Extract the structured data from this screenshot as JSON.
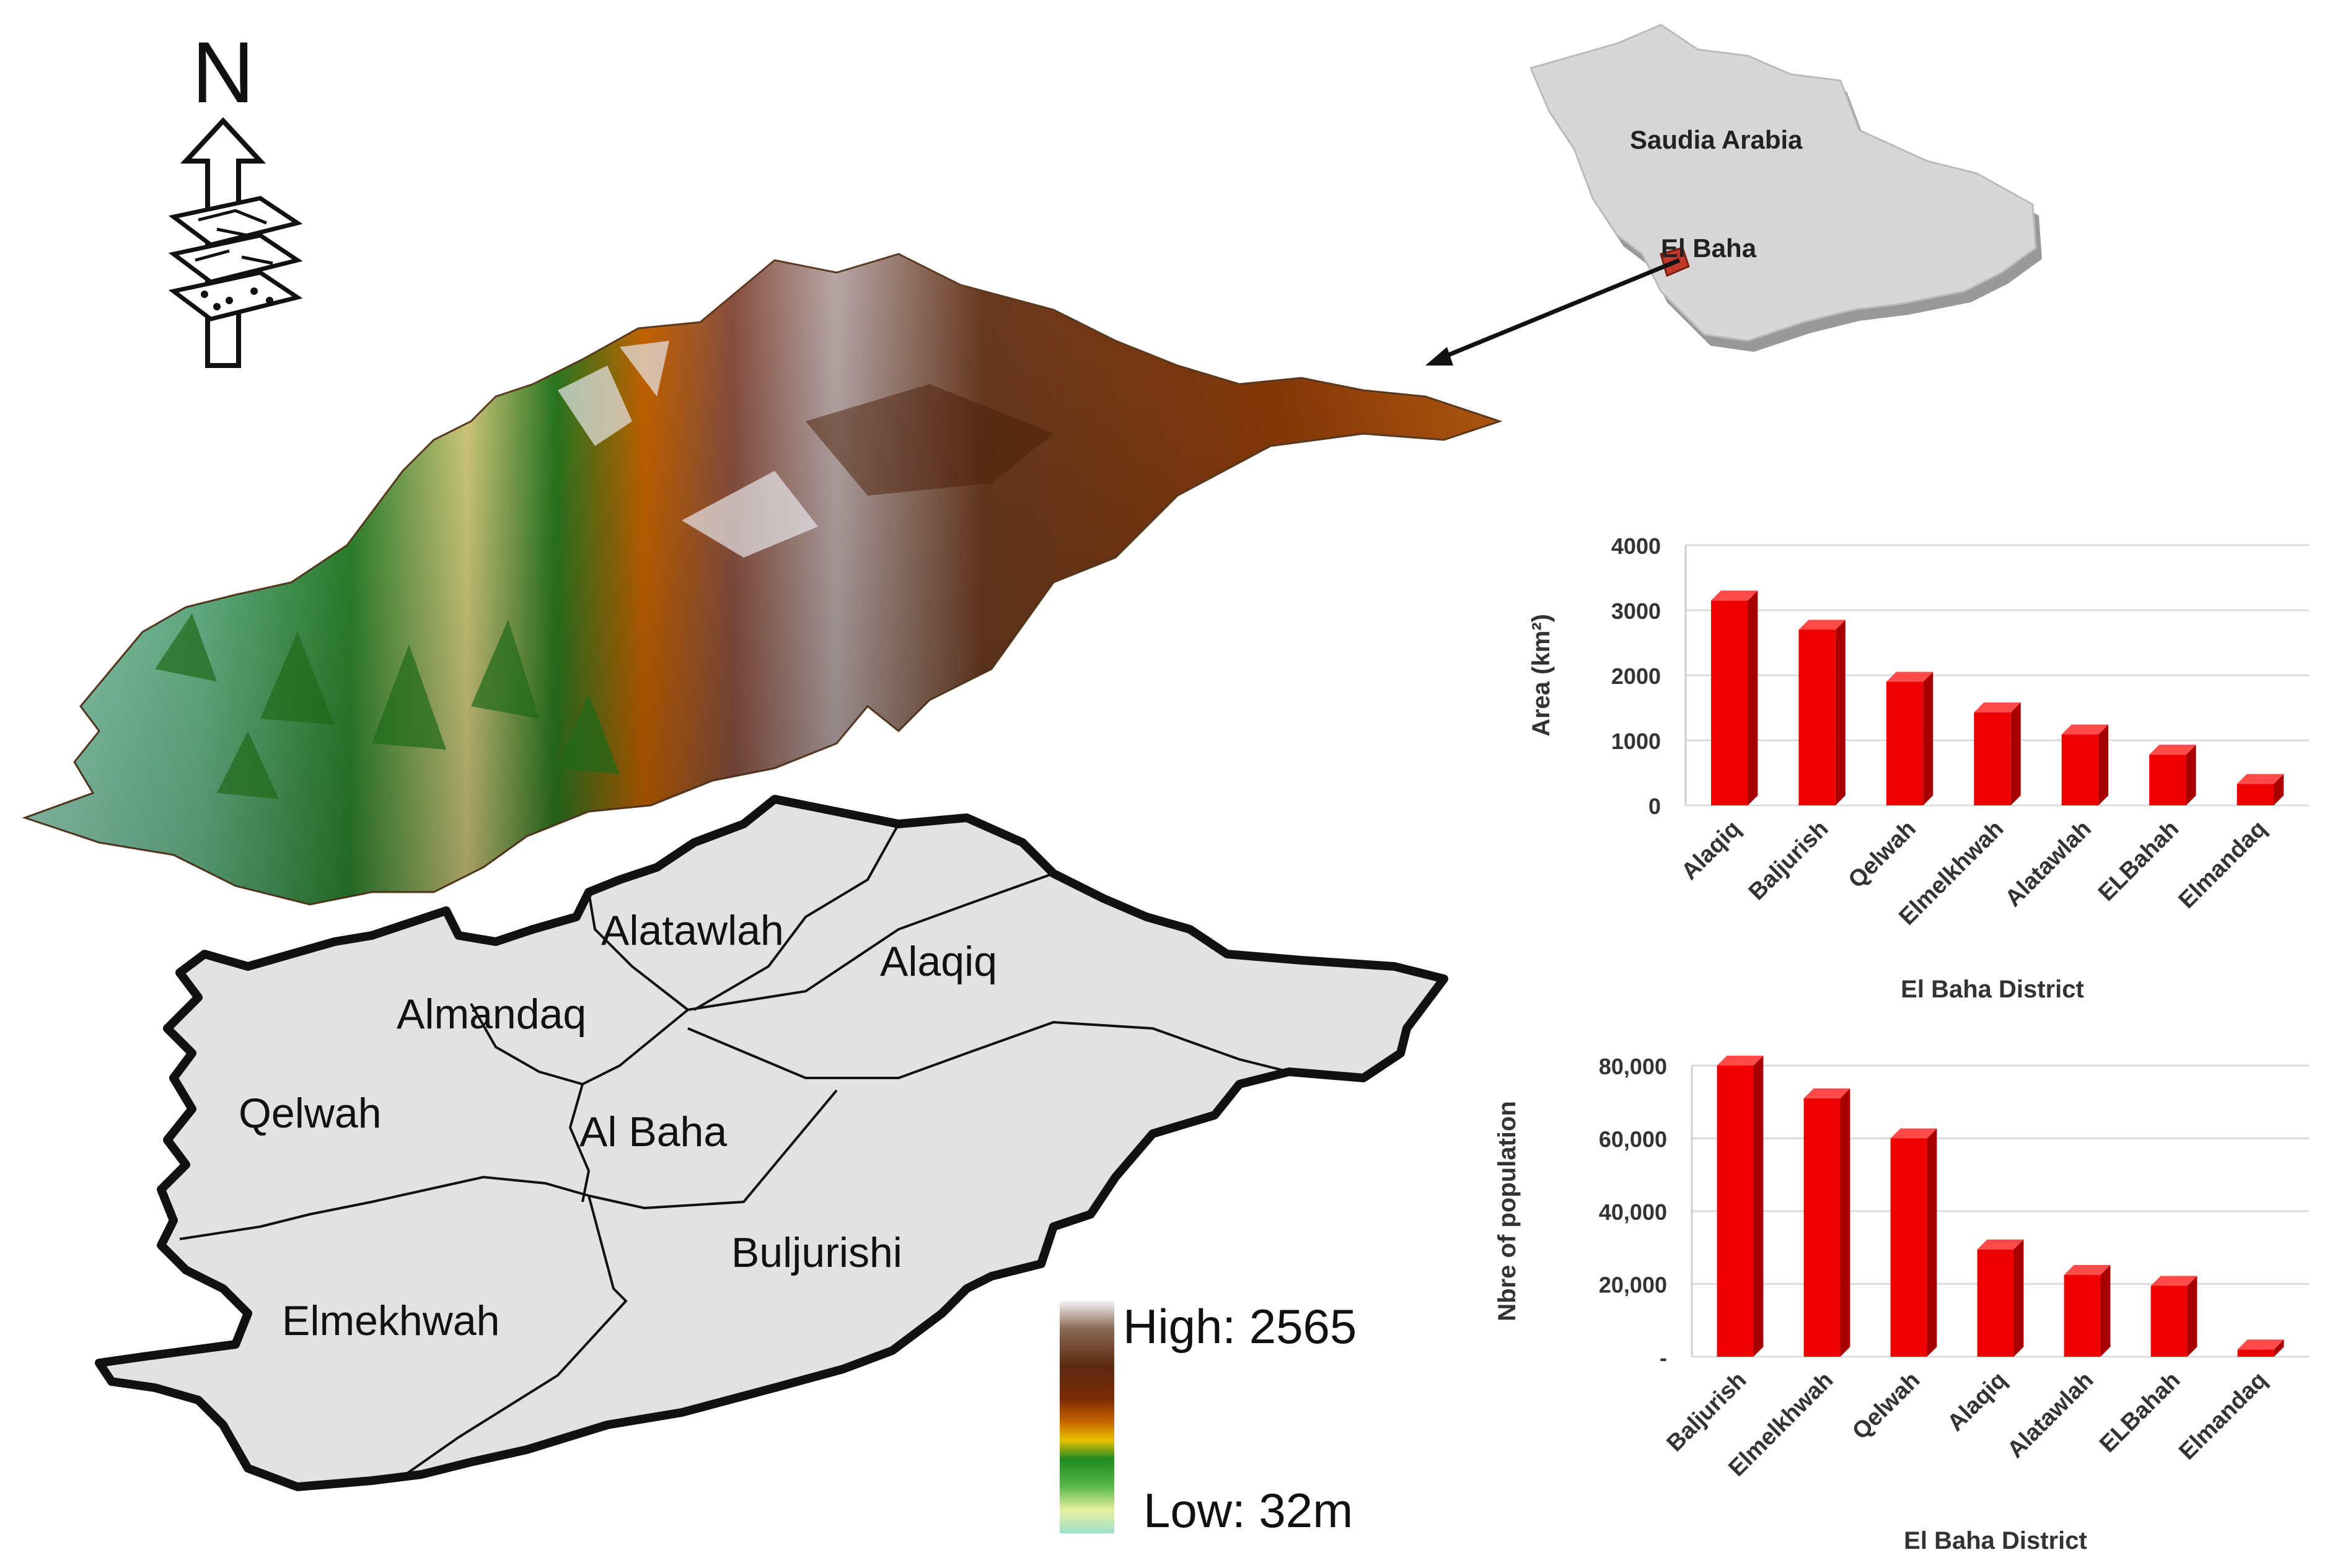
{
  "north_arrow": {
    "letter": "N",
    "icon": "north-arrow-icon"
  },
  "inset": {
    "country_label": "Saudia Arabia",
    "region_label": "El Baha",
    "country_color": "#d7d7d7",
    "region_color": "#c0392b"
  },
  "terrain": {
    "icon": "3d-elevation-model"
  },
  "district_map": {
    "fill_color": "#e2e2e2",
    "districts": [
      {
        "name": "Alatawlah"
      },
      {
        "name": "Alaqiq"
      },
      {
        "name": "Almandaq"
      },
      {
        "name": "Qelwah"
      },
      {
        "name": "Al Baha"
      },
      {
        "name": "Buljurishi"
      },
      {
        "name": "Elmekhwah"
      }
    ]
  },
  "elevation_legend": {
    "high_label": "High: 2565",
    "low_label": "Low: 32m",
    "colors": [
      "#f4f4f4",
      "#8a6a55",
      "#5c2a10",
      "#7a2a05",
      "#c86400",
      "#e8c000",
      "#1e8a20",
      "#5ab84a",
      "#e8f0a0",
      "#9ee0c8"
    ]
  },
  "chart_data": [
    {
      "type": "bar",
      "categories": [
        "Alaqiq",
        "Baljurish",
        "Qelwah",
        "Elmelkhwah",
        "Alatawlah",
        "ELBahah",
        "Elmandaq"
      ],
      "values": [
        3150,
        2700,
        1900,
        1430,
        1090,
        780,
        330
      ],
      "ylabel": "Area (km²)",
      "xlabel": "El Baha District",
      "ylim": [
        0,
        4000
      ],
      "yticks": [
        "0",
        "1000",
        "2000",
        "3000",
        "4000"
      ],
      "grid": true,
      "bar_color": "#ee0000"
    },
    {
      "type": "bar",
      "categories": [
        "Baljurish",
        "Elmelkhwah",
        "Qelwah",
        "Alaqiq",
        "Alatawlah",
        "ELBahah",
        "Elmandaq"
      ],
      "values": [
        80000,
        71000,
        60000,
        29500,
        22500,
        19500,
        2000
      ],
      "ylabel": "Nbre of population",
      "xlabel": "El Baha District",
      "ylim": [
        0,
        80000
      ],
      "yticks": [
        "-",
        "20,000",
        "40,000",
        "60,000",
        "80,000"
      ],
      "grid": true,
      "bar_color": "#ee0000"
    }
  ]
}
